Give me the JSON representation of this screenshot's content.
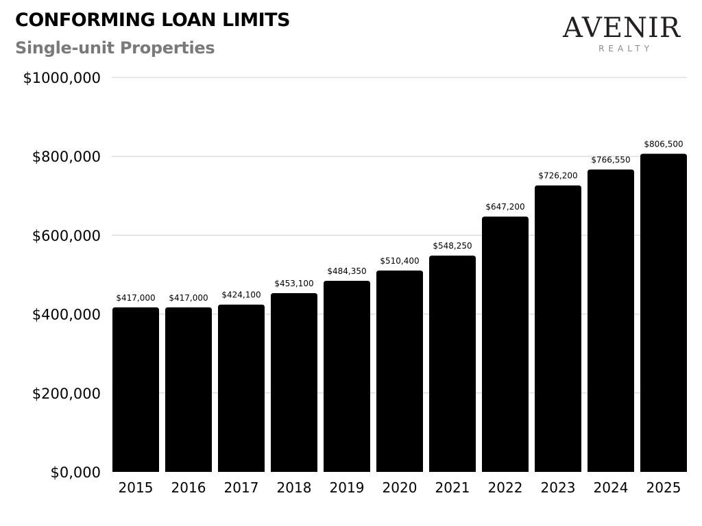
{
  "header": {
    "title": "CONFORMING LOAN LIMITS",
    "subtitle": "Single-unit Properties"
  },
  "brand": {
    "name": "AVENIR",
    "tagline": "REALTY"
  },
  "colors": {
    "bar": "#000000",
    "grid": "#cfcfcf",
    "subtitle": "#7a7a7a"
  },
  "chart_data": {
    "type": "bar",
    "title": "CONFORMING LOAN LIMITS",
    "subtitle": "Single-unit Properties",
    "xlabel": "",
    "ylabel": "",
    "categories": [
      "2015",
      "2016",
      "2017",
      "2018",
      "2019",
      "2020",
      "2021",
      "2022",
      "2023",
      "2024",
      "2025"
    ],
    "values": [
      417000,
      417000,
      424100,
      453100,
      484350,
      510400,
      548250,
      647200,
      726200,
      766550,
      806500
    ],
    "data_labels": [
      "$417,000",
      "$417,000",
      "$424,100",
      "$453,100",
      "$484,350",
      "$510,400",
      "$548,250",
      "$647,200",
      "$726,200",
      "$766,550",
      "$806,500"
    ],
    "ylim": [
      0,
      1000000
    ],
    "yticks": [
      0,
      200000,
      400000,
      600000,
      800000,
      1000000
    ],
    "ytick_labels": [
      "$0,000",
      "$200,000",
      "$400,000",
      "$600,000",
      "$800,000",
      "$1000,000"
    ],
    "grid": true,
    "legend": "none"
  }
}
